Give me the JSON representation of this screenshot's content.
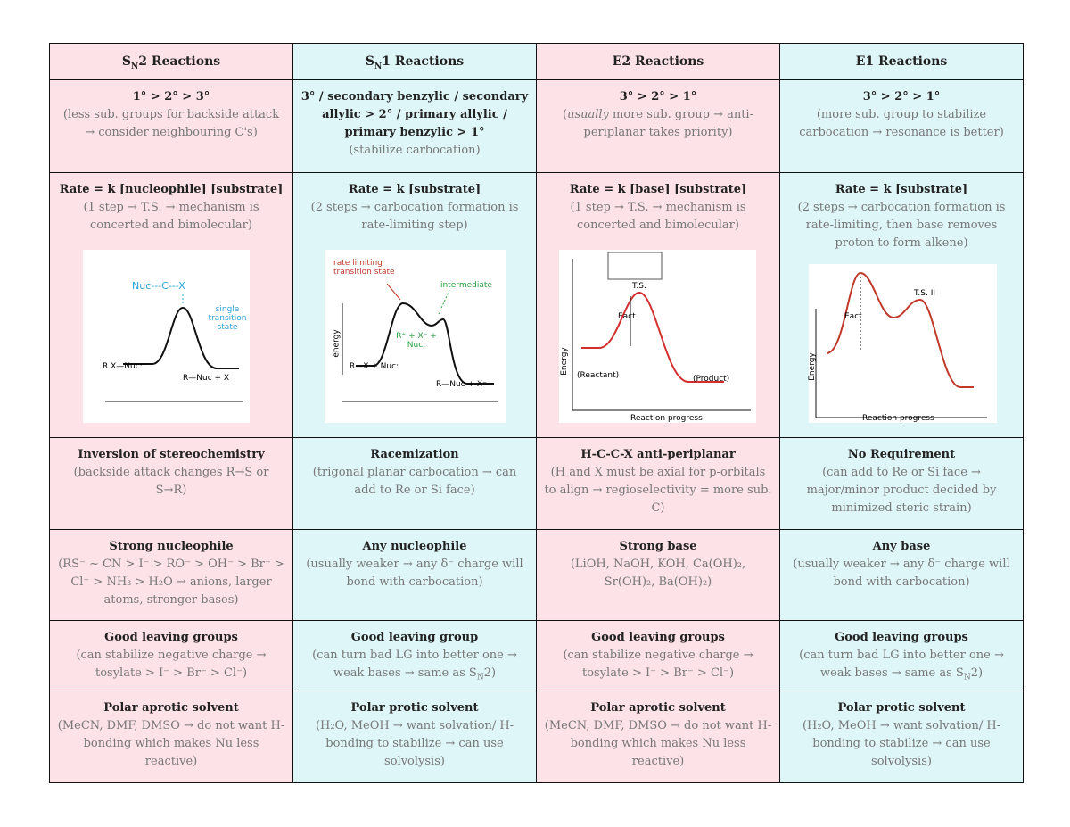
{
  "table": {
    "header": [
      [
        "S",
        {
          "sub": "N"
        },
        "2 Reactions"
      ],
      [
        "S",
        {
          "sub": "N"
        },
        "1 Reactions"
      ],
      "E2 Reactions",
      "E1 Reactions"
    ],
    "rows": [
      [
        {
          "title": "1° > 2° > 3°",
          "detail": "(less sub. groups for backside attack → consider neighbouring C's)"
        },
        {
          "title": "3° / secondary benzylic / secondary allylic > 2° / primary allylic / primary benzylic > 1°",
          "detail": "(stabilize carbocation)"
        },
        {
          "title": "3° > 2° > 1°",
          "detail": [
            "(",
            {
              "i": "usually"
            },
            " more sub. group → anti-periplanar takes priority)"
          ]
        },
        {
          "title": "3° > 2° > 1°",
          "detail": "(more sub. group to stabilize carbocation → resonance is better)"
        }
      ],
      [
        {
          "title": "Rate = k [nucleophile] [substrate]",
          "detail": "(1 step → T.S. → mechanism is concerted and bimolecular)"
        },
        {
          "title": "Rate = k [substrate]",
          "detail": "(2 steps → carbocation formation is rate-limiting step)"
        },
        {
          "title": "Rate = k [base] [substrate]",
          "detail": "(1 step → T.S. → mechanism is concerted and bimolecular)"
        },
        {
          "title": "Rate = k [substrate]",
          "detail": "(2 steps → carbocation formation is rate-limiting, then base removes proton to form alkene)"
        }
      ],
      [
        {
          "title": "Inversion of stereochemistry",
          "detail": "(backside attack changes R→S or S→R)"
        },
        {
          "title": "Racemization",
          "detail": "(trigonal planar carbocation → can add to Re or Si face)"
        },
        {
          "title": "H-C-C-X anti-periplanar",
          "detail": "(H and X must be axial for p-orbitals to align → regioselectivity = more sub. C)"
        },
        {
          "title": "No Requirement",
          "detail": "(can add to Re or Si face → major/minor product decided by minimized steric strain)"
        }
      ],
      [
        {
          "title": "Strong nucleophile",
          "detail": "(RS⁻ ~ CN > I⁻ > RO⁻ > OH⁻ > Br⁻ > Cl⁻ > NH₃ > H₂O → anions, larger atoms, stronger bases)"
        },
        {
          "title": "Any nucleophile",
          "detail": "(usually weaker → any δ⁻ charge will bond with carbocation)"
        },
        {
          "title": "Strong base",
          "detail": "(LiOH, NaOH, KOH, Ca(OH)₂, Sr(OH)₂, Ba(OH)₂)"
        },
        {
          "title": "Any base",
          "detail": "(usually weaker → any δ⁻ charge will bond with carbocation)"
        }
      ],
      [
        {
          "title": "Good leaving groups",
          "detail": "(can stabilize negative charge → tosylate > I⁻ > Br⁻ > Cl⁻)"
        },
        {
          "title": "Good leaving group",
          "detail": [
            "(can turn bad LG into better one → weak bases → same as S",
            {
              "sub": "N"
            },
            "2)"
          ]
        },
        {
          "title": "Good leaving groups",
          "detail": "(can stabilize negative charge → tosylate > I⁻ > Br⁻ > Cl⁻)"
        },
        {
          "title": "Good leaving groups",
          "detail": [
            "(can turn bad LG into better one → weak bases → same as S",
            {
              "sub": "N"
            },
            "2)"
          ]
        }
      ],
      [
        {
          "title": "Polar aprotic solvent",
          "detail": "(MeCN, DMF, DMSO → do not want H-bonding which makes Nu less reactive)"
        },
        {
          "title": "Polar protic solvent",
          "detail": "(H₂O, MeOH → want solvation/ H-bonding to stabilize → can use solvolysis)"
        },
        {
          "title": "Polar aprotic solvent",
          "detail": "(MeCN, DMF, DMSO → do not want H-bonding which makes Nu less reactive)"
        },
        {
          "title": "Polar protic solvent",
          "detail": "(H₂O, MeOH → want solvation/ H-bonding to stabilize → can use solvolysis)"
        }
      ]
    ]
  },
  "diagrams": [
    {
      "labels": [
        "Nuc---C---X",
        "single transition state",
        "R   X—Nuc:⁻",
        "R—Nuc + X⁻"
      ]
    },
    {
      "labels": [
        "rate limiting transition state",
        "intermediate",
        "R⁺ + X⁻ + Nuc:",
        "energy",
        "R—X + Nuc:",
        "R—Nuc + X⁻"
      ]
    },
    {
      "labels": [
        "T.S.",
        "Eact",
        "Energy",
        "Reaction progress",
        "(Reactant)",
        "(Product)"
      ]
    },
    {
      "labels": [
        "T.S. II",
        "Eact",
        "Energy",
        "Reaction progress"
      ]
    }
  ]
}
